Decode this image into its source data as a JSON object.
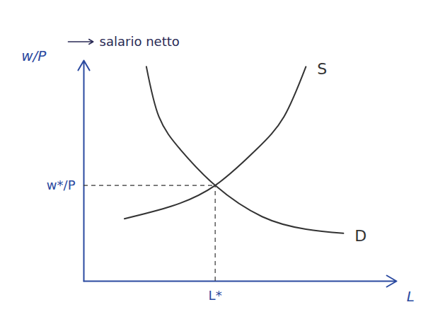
{
  "chart_data": {
    "type": "line",
    "y_label": "w/P",
    "annotation": "salario netto",
    "x_label": "L",
    "xlim": [
      0,
      10
    ],
    "ylim": [
      0,
      10.6
    ],
    "xticks": [
      {
        "value": 4.2,
        "label": "L*"
      }
    ],
    "yticks": [
      {
        "value": 4.6,
        "label": "w*/P"
      }
    ],
    "series": [
      {
        "name": "S",
        "color": "#333333",
        "x": [
          1.3,
          2.8,
          4.2,
          5.5,
          6.4,
          7.1
        ],
        "values": [
          3.0,
          3.6,
          4.6,
          6.3,
          7.9,
          10.3
        ]
      },
      {
        "name": "D",
        "color": "#333333",
        "x": [
          2.0,
          2.4,
          3.1,
          4.2,
          5.7,
          7.1,
          8.3
        ],
        "values": [
          10.3,
          7.9,
          6.3,
          4.6,
          3.1,
          2.5,
          2.3
        ]
      }
    ]
  }
}
